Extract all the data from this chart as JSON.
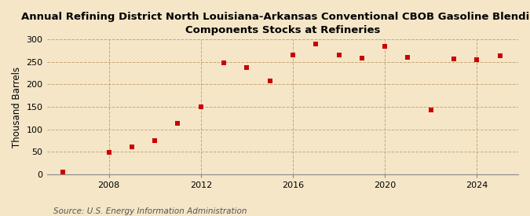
{
  "title_line1": "Annual Refining District North Louisiana-Arkansas Conventional CBOB Gasoline Blending",
  "title_line2": "Components Stocks at Refineries",
  "ylabel": "Thousand Barrels",
  "source": "Source: U.S. Energy Information Administration",
  "background_color": "#f5e6c8",
  "plot_bg_color": "#f5e6c8",
  "years": [
    2006,
    2008,
    2009,
    2010,
    2011,
    2012,
    2013,
    2014,
    2015,
    2016,
    2017,
    2018,
    2019,
    2020,
    2021,
    2022,
    2023,
    2024,
    2025
  ],
  "values": [
    5,
    48,
    60,
    75,
    113,
    150,
    248,
    237,
    208,
    265,
    290,
    265,
    258,
    285,
    260,
    143,
    257,
    255,
    263
  ],
  "marker_color": "#cc0000",
  "marker_size": 5,
  "ylim": [
    0,
    300
  ],
  "yticks": [
    0,
    50,
    100,
    150,
    200,
    250,
    300
  ],
  "xlim": [
    2005.3,
    2025.8
  ],
  "xticks": [
    2008,
    2012,
    2016,
    2020,
    2024
  ],
  "grid_color": "#c8a878",
  "title_fontsize": 9.5,
  "label_fontsize": 8.5,
  "tick_fontsize": 8,
  "source_fontsize": 7.5
}
